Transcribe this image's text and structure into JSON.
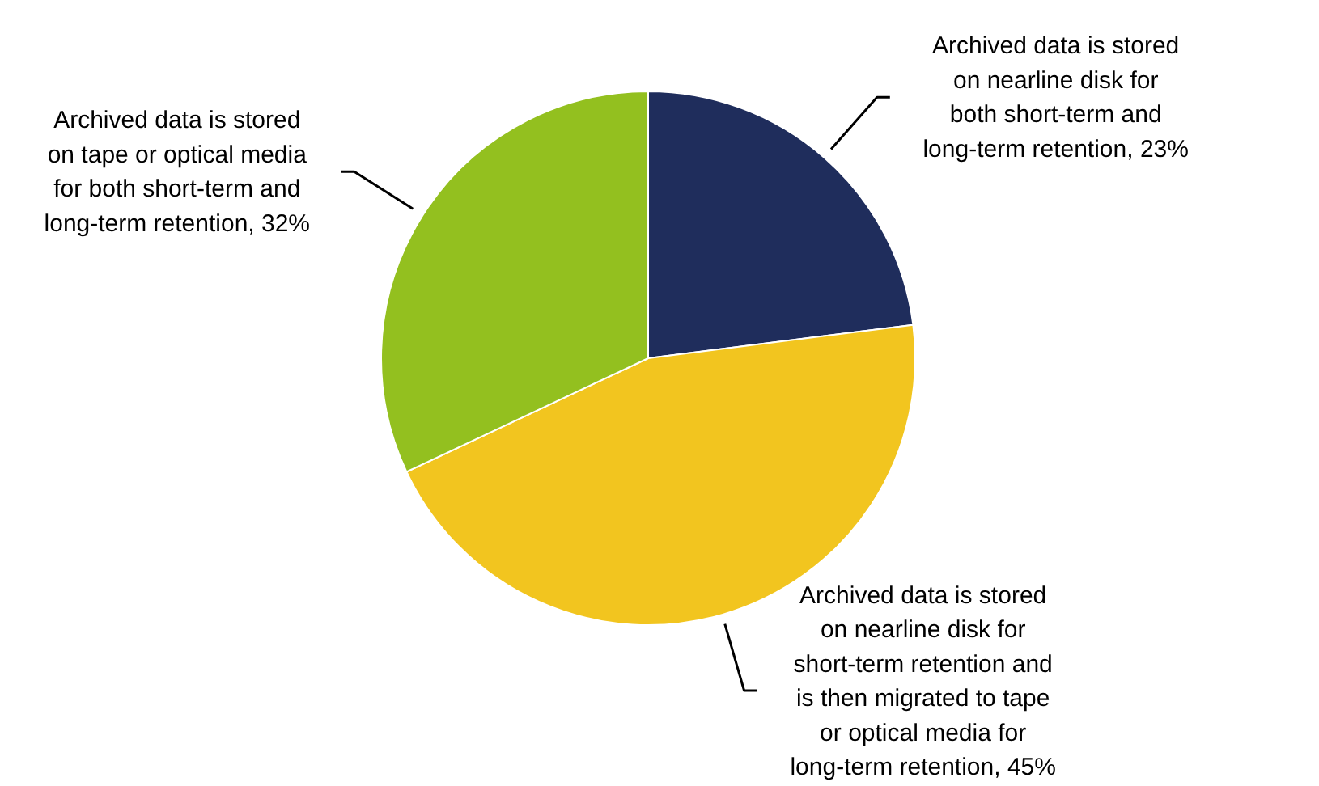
{
  "chart_data": {
    "type": "pie",
    "categories": [
      "Archived data is stored on nearline disk for both short-term and long-term retention",
      "Archived data is stored on nearline disk for short-term retention and is then migrated to tape or optical media for long-term retention",
      "Archived data is stored on tape or optical media for both short-term and long-term retention"
    ],
    "values": [
      23,
      45,
      32
    ],
    "value_labels": [
      "23%",
      "45%",
      "32%"
    ],
    "colors": [
      "#1f2d5c",
      "#f2c51f",
      "#93c01f"
    ]
  }
}
